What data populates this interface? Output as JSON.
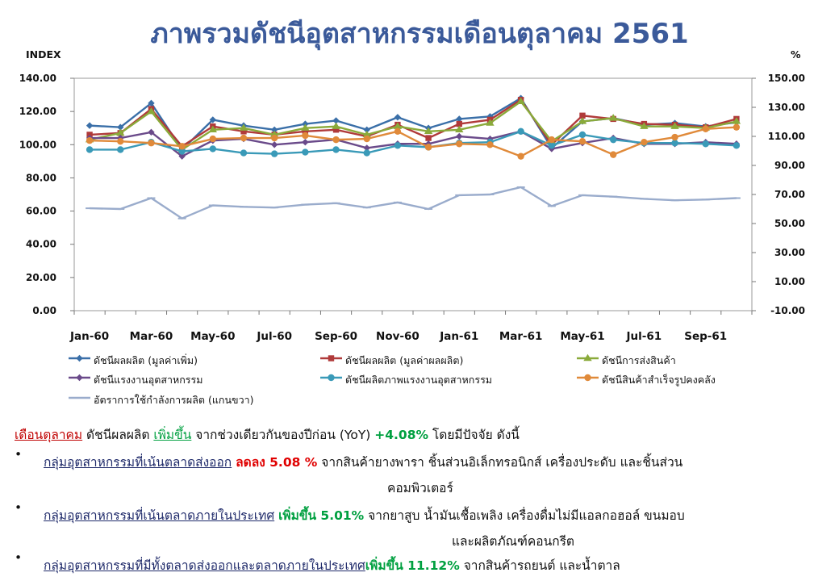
{
  "title": "ภาพรวมดัชนีอุตสาหกรรมเดือนตุลาคม 2561",
  "chart_data": {
    "type": "line",
    "ylabel_left": "INDEX",
    "ylabel_right": "%",
    "ylim_left": [
      0,
      140
    ],
    "ylim_right": [
      -10,
      150
    ],
    "yticks_left": [
      "0.00",
      "20.00",
      "40.00",
      "60.00",
      "80.00",
      "100.00",
      "120.00",
      "140.00"
    ],
    "yticks_right": [
      "-10.00",
      "10.00",
      "30.00",
      "50.00",
      "70.00",
      "90.00",
      "110.00",
      "130.00",
      "150.00"
    ],
    "x_tick_labels": [
      "Jan-60",
      "Mar-60",
      "May-60",
      "Jul-60",
      "Sep-60",
      "Nov-60",
      "Jan-61",
      "Mar-61",
      "May-61",
      "Jul-61",
      "Sep-61"
    ],
    "categories": [
      "Jan-60",
      "Feb-60",
      "Mar-60",
      "Apr-60",
      "May-60",
      "Jun-60",
      "Jul-60",
      "Aug-60",
      "Sep-60",
      "Oct-60",
      "Nov-60",
      "Dec-60",
      "Jan-61",
      "Feb-61",
      "Mar-61",
      "Apr-61",
      "May-61",
      "Jun-61",
      "Jul-61",
      "Aug-61",
      "Sep-61",
      "Oct-61"
    ],
    "legend_position": "bottom",
    "series": [
      {
        "name": "ดัชนีผลผลิต (มูลค่าเพิ่ม)",
        "color": "#3a6fa8",
        "marker": "diamond",
        "axis": "left",
        "values": [
          111.5,
          110.5,
          125.0,
          97.0,
          115.0,
          111.5,
          109.0,
          112.5,
          114.5,
          109.0,
          116.5,
          110.0,
          115.5,
          117.0,
          128.0,
          98.0,
          114.0,
          116.0,
          112.0,
          113.0,
          111.0,
          113.5
        ]
      },
      {
        "name": "ดัชนีผลผลิต (มูลค่าผลผลิต)",
        "color": "#b03a3a",
        "marker": "square",
        "axis": "left",
        "values": [
          106.0,
          107.0,
          121.5,
          99.0,
          111.0,
          108.0,
          106.0,
          108.0,
          109.0,
          105.0,
          112.0,
          104.0,
          112.5,
          115.0,
          127.0,
          100.0,
          117.5,
          115.5,
          112.5,
          112.0,
          110.5,
          115.5
        ]
      },
      {
        "name": "ดัชนีการส่งสินค้า",
        "color": "#8aaa3a",
        "marker": "triangle",
        "axis": "left",
        "values": [
          103.0,
          107.0,
          120.0,
          97.0,
          109.0,
          110.0,
          106.0,
          110.0,
          111.0,
          106.0,
          111.0,
          108.0,
          109.0,
          113.0,
          126.0,
          102.0,
          114.0,
          116.0,
          111.0,
          111.0,
          110.0,
          114.0
        ]
      },
      {
        "name": "ดัชนีแรงงานอุตสาหกรรม",
        "color": "#6a4a8a",
        "marker": "diamond",
        "axis": "left",
        "values": [
          104.0,
          104.0,
          107.5,
          93.0,
          102.5,
          103.5,
          100.0,
          101.5,
          103.0,
          98.0,
          100.5,
          100.5,
          105.0,
          103.5,
          108.0,
          97.5,
          101.0,
          104.0,
          100.5,
          100.5,
          101.5,
          100.5
        ]
      },
      {
        "name": "ดัชนีผลิตภาพแรงงานอุตสาหกรรม",
        "color": "#3a9ab8",
        "marker": "circle",
        "axis": "left",
        "values": [
          97.0,
          97.0,
          101.5,
          96.0,
          97.5,
          95.0,
          94.5,
          95.5,
          97.0,
          95.0,
          99.5,
          98.5,
          101.0,
          101.5,
          108.0,
          99.5,
          106.0,
          103.0,
          101.0,
          101.0,
          100.5,
          99.5
        ]
      },
      {
        "name": "ดัชนีสินค้าสำเร็จรูปคงคลัง",
        "color": "#e08a3a",
        "marker": "circle",
        "axis": "left",
        "values": [
          102.5,
          102.0,
          101.0,
          99.0,
          103.5,
          104.0,
          104.0,
          105.5,
          103.0,
          103.5,
          108.0,
          98.5,
          100.5,
          100.0,
          93.0,
          103.0,
          102.0,
          94.0,
          101.5,
          104.5,
          109.5,
          110.5
        ]
      },
      {
        "name": "อัตราการใช้กำลังการผลิต (แกนขวา)",
        "color": "#9aaccc",
        "marker": "dash",
        "axis": "right",
        "values": [
          60.5,
          60.0,
          67.5,
          53.5,
          62.5,
          61.5,
          61.0,
          63.0,
          64.0,
          61.0,
          64.5,
          60.0,
          69.5,
          70.0,
          75.0,
          62.0,
          69.5,
          68.5,
          67.0,
          66.0,
          66.5,
          67.5
        ]
      }
    ]
  },
  "summary": {
    "line1": {
      "month": "เดือนตุลาคม",
      "text1": " ดัชนีผลผลิต ",
      "trend": "เพิ่มขึ้น",
      "text2": " จากช่วงเดียวกันของปีก่อน (YoY) ",
      "value": "+4.08%",
      "text3": " โดยมีปัจจัย ดังนี้"
    },
    "bullets": [
      {
        "group": "กลุ่มอุตสาหกรรมที่เน้นตลาดส่งออก",
        "trend": "ลดลง 5.08 %",
        "detail": "จากสินค้ายางพารา ชิ้นส่วนอิเล็กทรอนิกส์ เครื่องประดับ และชิ้นส่วน",
        "detail2": "คอมพิวเตอร์",
        "trend_color": "red"
      },
      {
        "group": "กลุ่มอุตสาหกรรมที่เน้นตลาดภายในประเทศ",
        "trend": "เพิ่มขึ้น 5.01%",
        "detail": "จากยาสูบ น้ำมันเชื้อเพลิง เครื่องดื่มไม่มีแอลกอฮอล์ ขนมอบ",
        "detail2": "และผลิตภัณฑ์คอนกรีต",
        "trend_color": "green"
      },
      {
        "group": "กลุ่มอุตสาหกรรมที่มีทั้งตลาดส่งออกและตลาดภายในประเทศ",
        "trend": "เพิ่มขึ้น 11.12%",
        "detail": "จากสินค้ารถยนต์ และน้ำตาล",
        "detail2": "",
        "trend_color": "green"
      }
    ]
  }
}
